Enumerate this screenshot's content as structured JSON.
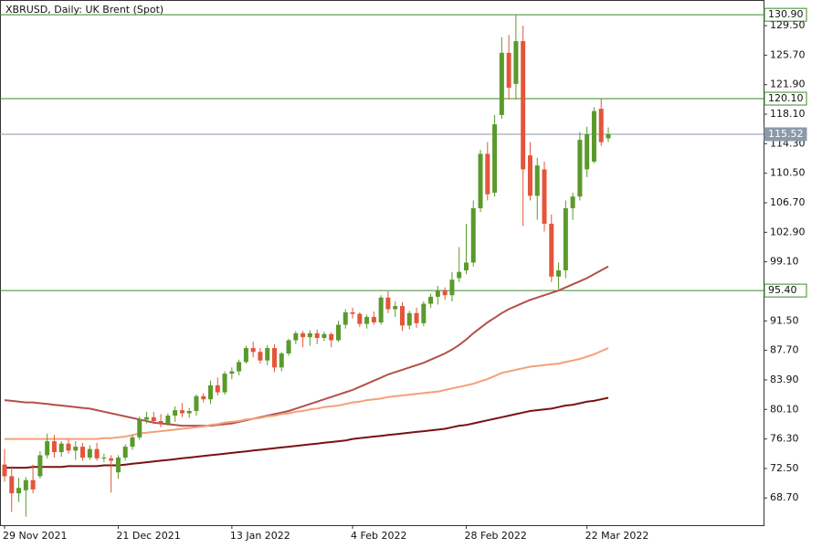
{
  "chart_data": {
    "type": "candlestick",
    "title": "XBRUSD, Daily:  UK Brent (Spot)",
    "categories": [
      "29 Nov 2021",
      null,
      null,
      null,
      null,
      null,
      null,
      null,
      null,
      null,
      null,
      null,
      null,
      null,
      null,
      null,
      "21 Dec 2021",
      null,
      null,
      null,
      null,
      null,
      null,
      null,
      null,
      null,
      null,
      null,
      null,
      null,
      null,
      null,
      "13 Jan 2022",
      null,
      null,
      null,
      null,
      null,
      null,
      null,
      null,
      null,
      null,
      null,
      null,
      null,
      null,
      null,
      null,
      "4 Feb 2022",
      null,
      null,
      null,
      null,
      null,
      null,
      null,
      null,
      null,
      null,
      null,
      null,
      null,
      null,
      null,
      "28 Feb 2022",
      null,
      null,
      null,
      null,
      null,
      null,
      null,
      null,
      null,
      null,
      null,
      null,
      null,
      null,
      null,
      null,
      "22 Mar 2022",
      null,
      null,
      null
    ],
    "open": [
      73.0,
      71.5,
      69.3,
      69.7,
      71.0,
      71.5,
      74.2,
      76.0,
      74.6,
      75.7,
      74.8,
      75.3,
      73.9,
      75.0,
      73.8,
      73.8,
      72.0,
      73.9,
      75.3,
      76.5,
      78.8,
      79.1,
      78.6,
      78.3,
      79.3,
      80.0,
      79.6,
      79.9,
      81.8,
      81.4,
      83.2,
      82.3,
      84.7,
      85.0,
      86.2,
      88.0,
      87.5,
      86.4,
      88.0,
      85.5,
      87.3,
      89.0,
      89.9,
      89.4,
      89.9,
      89.3,
      89.8,
      89.0,
      91.0,
      92.6,
      92.4,
      91.1,
      92.0,
      91.3,
      94.5,
      93.0,
      93.4,
      90.9,
      92.5,
      91.2,
      93.7,
      94.6,
      95.4,
      94.8,
      97.0,
      98.0,
      99.0,
      106.0,
      113.0,
      108.0,
      118.0,
      126.0,
      122.0,
      127.5,
      112.8,
      107.6,
      111.0,
      104.0,
      97.2,
      98.0,
      106.0,
      107.5,
      111.0,
      112.0,
      118.8,
      115.0
    ],
    "high": [
      75.0,
      72.8,
      71.3,
      71.4,
      73.0,
      74.7,
      77.0,
      76.8,
      76.0,
      76.2,
      76.0,
      75.8,
      75.5,
      75.8,
      74.4,
      74.2,
      74.2,
      75.6,
      76.8,
      79.2,
      79.8,
      79.8,
      79.5,
      79.6,
      80.5,
      80.9,
      80.3,
      82.0,
      82.2,
      83.8,
      84.2,
      85.0,
      85.5,
      86.5,
      88.3,
      88.8,
      88.0,
      88.4,
      88.5,
      87.5,
      89.2,
      90.2,
      90.2,
      90.3,
      90.4,
      90.1,
      90.0,
      91.5,
      93.0,
      93.2,
      92.6,
      92.3,
      92.7,
      94.8,
      95.3,
      94.0,
      93.9,
      92.8,
      93.2,
      94.0,
      95.0,
      96.0,
      95.8,
      97.8,
      101.0,
      104.0,
      107.0,
      113.5,
      114.5,
      118.0,
      128.0,
      128.3,
      130.9,
      129.5,
      114.5,
      112.5,
      112.0,
      105.2,
      99.0,
      107.0,
      108.0,
      115.8,
      116.5,
      119.0,
      120.1,
      116.4
    ],
    "low": [
      70.8,
      66.9,
      68.2,
      66.3,
      69.3,
      71.2,
      73.8,
      73.9,
      74.0,
      74.4,
      73.6,
      73.5,
      73.6,
      73.5,
      73.3,
      69.4,
      71.2,
      73.5,
      74.9,
      76.2,
      78.3,
      78.2,
      77.8,
      78.0,
      78.5,
      79.1,
      79.0,
      79.3,
      81.0,
      80.8,
      81.9,
      82.0,
      84.0,
      84.5,
      86.0,
      86.8,
      86.0,
      85.8,
      84.9,
      85.0,
      87.0,
      88.5,
      88.1,
      88.3,
      88.5,
      88.9,
      88.1,
      88.8,
      90.5,
      91.8,
      90.7,
      90.5,
      91.0,
      91.0,
      92.5,
      92.0,
      90.2,
      90.4,
      90.6,
      90.8,
      93.2,
      93.6,
      94.2,
      94.0,
      96.5,
      97.5,
      98.5,
      105.5,
      107.0,
      107.5,
      117.5,
      120.0,
      120.0,
      103.7,
      107.0,
      104.5,
      103.0,
      96.5,
      95.6,
      97.0,
      104.5,
      107.0,
      110.0,
      111.8,
      114.0,
      114.5
    ],
    "close": [
      71.5,
      69.3,
      70.0,
      71.0,
      69.8,
      74.2,
      76.0,
      74.6,
      75.7,
      74.8,
      75.3,
      73.9,
      75.0,
      73.8,
      73.9,
      73.5,
      73.9,
      75.3,
      76.5,
      78.8,
      79.1,
      78.6,
      78.3,
      79.3,
      80.0,
      79.6,
      79.9,
      81.8,
      81.4,
      83.2,
      82.3,
      84.7,
      85.0,
      86.2,
      88.0,
      87.5,
      86.4,
      88.0,
      85.5,
      87.3,
      89.0,
      89.9,
      89.4,
      89.9,
      89.3,
      89.8,
      89.0,
      91.0,
      92.6,
      92.4,
      91.1,
      92.0,
      91.3,
      94.5,
      93.0,
      93.4,
      90.9,
      92.5,
      91.2,
      93.7,
      94.6,
      95.4,
      94.8,
      96.8,
      97.8,
      99.0,
      106.0,
      113.0,
      107.8,
      116.8,
      126.0,
      121.5,
      127.5,
      111.0,
      107.6,
      111.5,
      104.0,
      97.2,
      98.0,
      106.0,
      107.5,
      114.8,
      115.5,
      118.5,
      114.5,
      115.52
    ],
    "up_color": "#5a9a2c",
    "down_color": "#e4553a",
    "lines": [
      {
        "color": "#b4504a",
        "values": [
          81.3,
          81.2,
          81.1,
          81.0,
          81.0,
          80.9,
          80.8,
          80.7,
          80.6,
          80.5,
          80.4,
          80.3,
          80.2,
          80.0,
          79.8,
          79.6,
          79.4,
          79.2,
          79.0,
          78.8,
          78.6,
          78.4,
          78.3,
          78.2,
          78.1,
          78.0,
          78.0,
          78.0,
          78.0,
          78.0,
          78.1,
          78.2,
          78.3,
          78.5,
          78.7,
          78.9,
          79.1,
          79.3,
          79.5,
          79.7,
          79.9,
          80.2,
          80.5,
          80.8,
          81.1,
          81.4,
          81.7,
          82.0,
          82.3,
          82.6,
          83.0,
          83.4,
          83.8,
          84.2,
          84.6,
          84.9,
          85.2,
          85.5,
          85.8,
          86.1,
          86.5,
          86.9,
          87.3,
          87.8,
          88.4,
          89.1,
          89.9,
          90.6,
          91.3,
          91.9,
          92.5,
          93.0,
          93.4,
          93.8,
          94.2,
          94.5,
          94.8,
          95.1,
          95.4,
          95.8,
          96.2,
          96.6,
          97.0,
          97.5,
          98.0,
          98.5
        ]
      },
      {
        "color": "#f4a07a",
        "values": [
          76.3,
          76.3,
          76.3,
          76.3,
          76.3,
          76.3,
          76.3,
          76.3,
          76.3,
          76.3,
          76.3,
          76.3,
          76.3,
          76.3,
          76.4,
          76.4,
          76.5,
          76.6,
          76.8,
          77.0,
          77.1,
          77.2,
          77.3,
          77.4,
          77.5,
          77.6,
          77.7,
          77.8,
          77.9,
          78.1,
          78.2,
          78.4,
          78.5,
          78.6,
          78.8,
          78.9,
          79.0,
          79.2,
          79.3,
          79.5,
          79.6,
          79.8,
          79.9,
          80.1,
          80.2,
          80.4,
          80.5,
          80.6,
          80.8,
          81.0,
          81.1,
          81.3,
          81.4,
          81.5,
          81.7,
          81.8,
          81.9,
          82.0,
          82.1,
          82.2,
          82.3,
          82.4,
          82.6,
          82.8,
          83.0,
          83.2,
          83.4,
          83.7,
          84.0,
          84.4,
          84.8,
          85.0,
          85.2,
          85.4,
          85.6,
          85.7,
          85.8,
          85.9,
          86.0,
          86.2,
          86.4,
          86.6,
          86.9,
          87.2,
          87.6,
          88.0
        ]
      },
      {
        "color": "#7a1212",
        "values": [
          72.6,
          72.6,
          72.6,
          72.6,
          72.7,
          72.7,
          72.7,
          72.7,
          72.7,
          72.8,
          72.8,
          72.8,
          72.8,
          72.8,
          72.9,
          72.9,
          72.9,
          73.0,
          73.1,
          73.2,
          73.3,
          73.4,
          73.5,
          73.6,
          73.7,
          73.8,
          73.9,
          74.0,
          74.1,
          74.2,
          74.3,
          74.4,
          74.5,
          74.6,
          74.7,
          74.8,
          74.9,
          75.0,
          75.1,
          75.2,
          75.3,
          75.4,
          75.5,
          75.6,
          75.7,
          75.8,
          75.9,
          76.0,
          76.1,
          76.3,
          76.4,
          76.5,
          76.6,
          76.7,
          76.8,
          76.9,
          77.0,
          77.1,
          77.2,
          77.3,
          77.4,
          77.5,
          77.6,
          77.8,
          78.0,
          78.1,
          78.3,
          78.5,
          78.7,
          78.9,
          79.1,
          79.3,
          79.5,
          79.7,
          79.9,
          80.0,
          80.1,
          80.2,
          80.4,
          80.6,
          80.7,
          80.9,
          81.1,
          81.2,
          81.4,
          81.6
        ]
      }
    ],
    "levels": [
      {
        "value": 130.9,
        "label": "130.90"
      },
      {
        "value": 120.1,
        "label": "120.10"
      },
      {
        "value": 95.4,
        "label": "95.40"
      }
    ],
    "level_color": "#3d8a2a",
    "price": {
      "value": 115.52,
      "label": "115.52"
    },
    "price_color": "#8a9aaa",
    "ylim": [
      65.2,
      132.8
    ],
    "yticks": [
      {
        "value": 68.7,
        "label": "68.70"
      },
      {
        "value": 72.5,
        "label": "72.50"
      },
      {
        "value": 76.3,
        "label": "76.30"
      },
      {
        "value": 80.1,
        "label": "80.10"
      },
      {
        "value": 83.9,
        "label": "83.90"
      },
      {
        "value": 87.7,
        "label": "87.70"
      },
      {
        "value": 91.5,
        "label": "91.50"
      },
      {
        "value": 95.3,
        "label": "95.30"
      },
      {
        "value": 99.1,
        "label": "99.10"
      },
      {
        "value": 102.9,
        "label": "102.90"
      },
      {
        "value": 106.7,
        "label": "106.70"
      },
      {
        "value": 110.5,
        "label": "110.50"
      },
      {
        "value": 114.3,
        "label": "114.30"
      },
      {
        "value": 118.1,
        "label": "118.10"
      },
      {
        "value": 121.9,
        "label": "121.90"
      },
      {
        "value": 125.7,
        "label": "125.70"
      },
      {
        "value": 129.5,
        "label": "129.50"
      }
    ]
  }
}
